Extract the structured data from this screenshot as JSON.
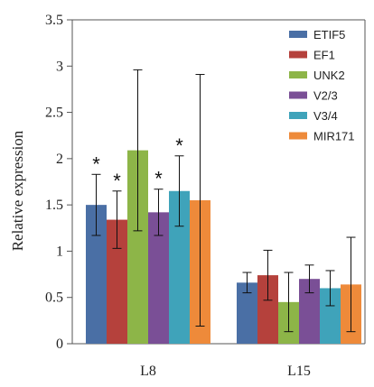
{
  "chart_data": {
    "type": "bar",
    "ylabel": "Relative expression",
    "xlabel": "",
    "ylim": [
      0,
      3.5
    ],
    "yticks": [
      "0",
      "0.5",
      "1",
      "1.5",
      "2",
      "2.5",
      "3",
      "3.5"
    ],
    "categories": [
      "L8",
      "L15"
    ],
    "legend_position": "top-right",
    "grid": false,
    "significance_mark": "*",
    "series": [
      {
        "name": "ETIF5",
        "color": "#4a6fa5",
        "values": [
          1.5,
          0.66
        ],
        "errors": [
          0.33,
          0.11
        ],
        "significant": [
          true,
          false
        ]
      },
      {
        "name": "EF1",
        "color": "#b5413c",
        "values": [
          1.34,
          0.74
        ],
        "errors": [
          0.31,
          0.27
        ],
        "significant": [
          true,
          false
        ]
      },
      {
        "name": "UNK2",
        "color": "#8db548",
        "values": [
          2.09,
          0.45
        ],
        "errors": [
          0.87,
          0.32
        ],
        "significant": [
          false,
          false
        ]
      },
      {
        "name": "V2/3",
        "color": "#7a4f96",
        "values": [
          1.42,
          0.7
        ],
        "errors": [
          0.25,
          0.15
        ],
        "significant": [
          true,
          false
        ]
      },
      {
        "name": "V3/4",
        "color": "#3fa3ba",
        "values": [
          1.65,
          0.6
        ],
        "errors": [
          0.38,
          0.19
        ],
        "significant": [
          true,
          false
        ]
      },
      {
        "name": "MIR171",
        "color": "#ee8a3a",
        "values": [
          1.55,
          0.64
        ],
        "errors": [
          1.36,
          0.51
        ],
        "significant": [
          false,
          false
        ]
      }
    ]
  }
}
